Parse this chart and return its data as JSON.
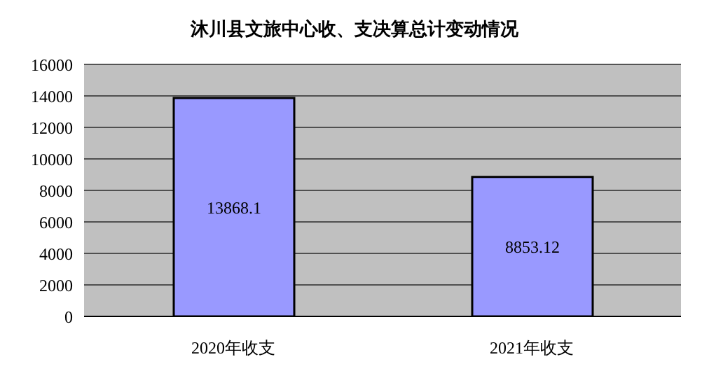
{
  "chart_data": {
    "type": "bar",
    "title": "沐川县文旅中心收、支决算总计变动情况",
    "categories": [
      "2020年收支",
      "2021年收支"
    ],
    "values": [
      13868.1,
      8853.12
    ],
    "color": "#9999ff",
    "ylim": [
      0,
      16000
    ],
    "yticks": [
      0,
      2000,
      4000,
      6000,
      8000,
      10000,
      12000,
      14000,
      16000
    ],
    "grid": "y",
    "data_labels": true
  }
}
